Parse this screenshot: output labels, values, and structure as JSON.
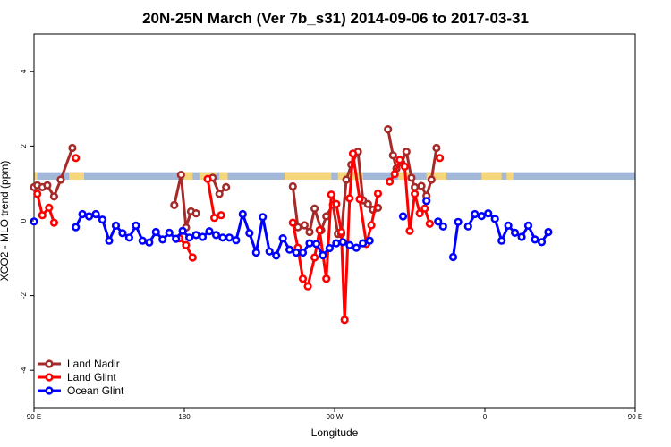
{
  "chart_data": {
    "type": "line",
    "title": "20N-25N March (Ver 7b_s31)   2014-09-06 to 2017-03-31",
    "xlabel": "Longitude",
    "ylabel": "XCO2 - MLO trend (ppm)",
    "xlim": [
      -180,
      180
    ],
    "ylim": [
      -5,
      5
    ],
    "x_ticks": [
      {
        "value": -180,
        "label": "90 E"
      },
      {
        "value": -90,
        "label": "180"
      },
      {
        "value": 0,
        "label": "90 W"
      },
      {
        "value": 90,
        "label": "0"
      },
      {
        "value": 180,
        "label": "90 E"
      },
      {
        "value": 270,
        "label": "180"
      }
    ],
    "y_ticks": [
      -4,
      -2,
      0,
      2,
      4
    ],
    "legend_position": "bottom-left",
    "land_ocean_band": {
      "y_range": [
        1.1,
        1.3
      ],
      "ocean_color": "#a3b8d8",
      "land_color": "#f5d67a",
      "land_segments": [
        [
          -180,
          -178
        ],
        [
          -159,
          -150
        ],
        [
          -90,
          -85
        ],
        [
          -81,
          -71
        ],
        [
          -69,
          -64
        ],
        [
          -30,
          -2
        ],
        [
          2,
          17
        ],
        [
          38,
          45
        ],
        [
          55,
          67
        ],
        [
          88,
          100
        ],
        [
          103,
          107
        ]
      ]
    },
    "series": [
      {
        "name": "Land Nadir",
        "color": "#a52a2a",
        "points": [
          [
            -180,
            0.9
          ],
          [
            -178,
            0.95
          ],
          [
            -175,
            0.9
          ],
          [
            -172,
            0.95
          ],
          [
            -168,
            0.65
          ],
          [
            -164,
            1.1
          ],
          [
            -157,
            1.95
          ],
          null,
          [
            -96,
            0.42
          ],
          [
            -92,
            1.23
          ],
          [
            -89,
            -0.18
          ],
          [
            -86,
            0.25
          ],
          [
            -83,
            0.2
          ],
          null,
          [
            -73,
            1.15
          ],
          [
            -69,
            0.72
          ],
          [
            -65,
            0.9
          ],
          null,
          [
            -25,
            0.92
          ],
          [
            -22,
            -0.17
          ],
          [
            -18,
            -0.12
          ],
          [
            -15,
            -0.3
          ],
          [
            -12,
            0.33
          ],
          [
            -8,
            -0.25
          ],
          [
            -5,
            0.12
          ],
          [
            -1,
            0.43
          ],
          [
            2,
            -0.35
          ],
          [
            4,
            -0.35
          ],
          [
            7,
            1.1
          ],
          [
            10,
            1.5
          ],
          [
            14,
            1.85
          ],
          [
            17,
            0.55
          ],
          [
            20,
            0.45
          ],
          [
            23,
            0.3
          ],
          [
            26,
            0.35
          ],
          null,
          [
            32,
            2.45
          ],
          [
            35,
            1.75
          ],
          [
            37,
            1.4
          ],
          [
            40,
            1.55
          ],
          [
            43,
            1.85
          ],
          [
            46,
            1.15
          ],
          [
            48,
            0.9
          ],
          [
            52,
            0.93
          ],
          [
            55,
            0.67
          ],
          [
            58,
            1.1
          ],
          [
            61,
            1.95
          ]
        ]
      },
      {
        "name": "Land Glint",
        "color": "#ff0000",
        "points": [
          [
            -178,
            0.72
          ],
          [
            -175,
            0.15
          ],
          [
            -171,
            0.35
          ],
          [
            -168,
            -0.05
          ],
          null,
          [
            -155,
            1.68
          ],
          null,
          [
            -93,
            -0.47
          ],
          [
            -89,
            -0.65
          ],
          [
            -85,
            -0.98
          ],
          null,
          [
            -76,
            1.12
          ],
          [
            -72,
            0.08
          ],
          [
            -68,
            0.15
          ],
          null,
          [
            -25,
            -0.05
          ],
          [
            -22,
            -0.72
          ],
          [
            -19,
            -1.55
          ],
          [
            -16,
            -1.75
          ],
          [
            -12,
            -0.98
          ],
          [
            -9,
            -0.25
          ],
          [
            -5,
            -1.55
          ],
          [
            -2,
            0.7
          ],
          [
            1,
            0.45
          ],
          [
            4,
            -0.3
          ],
          [
            6,
            -2.65
          ],
          [
            9,
            0.6
          ],
          [
            11,
            1.8
          ],
          [
            15,
            0.58
          ],
          [
            19,
            -0.62
          ],
          [
            22,
            -0.12
          ],
          [
            26,
            0.73
          ],
          null,
          [
            33,
            1.05
          ],
          [
            36,
            1.25
          ],
          [
            39,
            1.63
          ],
          [
            42,
            1.45
          ],
          [
            45,
            -0.27
          ],
          [
            48,
            0.72
          ],
          [
            51,
            0.2
          ],
          [
            54,
            0.33
          ],
          [
            57,
            -0.08
          ],
          null,
          [
            63,
            1.68
          ]
        ]
      },
      {
        "name": "Ocean Glint",
        "color": "#0000ff",
        "points": [
          [
            -180,
            -0.02
          ],
          null,
          [
            -155,
            -0.17
          ],
          [
            -151,
            0.18
          ],
          [
            -147,
            0.12
          ],
          [
            -143,
            0.18
          ],
          [
            -139,
            0.03
          ],
          [
            -135,
            -0.53
          ],
          [
            -131,
            -0.13
          ],
          [
            -127,
            -0.33
          ],
          [
            -123,
            -0.45
          ],
          [
            -119,
            -0.13
          ],
          [
            -115,
            -0.53
          ],
          [
            -111,
            -0.58
          ],
          [
            -107,
            -0.3
          ],
          [
            -103,
            -0.5
          ],
          [
            -99,
            -0.32
          ],
          [
            -95,
            -0.48
          ],
          [
            -91,
            -0.27
          ],
          [
            -87,
            -0.45
          ],
          [
            -83,
            -0.38
          ],
          [
            -79,
            -0.43
          ],
          [
            -75,
            -0.28
          ],
          [
            -71,
            -0.38
          ],
          [
            -67,
            -0.45
          ],
          [
            -63,
            -0.45
          ],
          [
            -59,
            -0.52
          ],
          [
            -55,
            0.18
          ],
          [
            -51,
            -0.33
          ],
          [
            -47,
            -0.85
          ],
          [
            -43,
            0.1
          ],
          [
            -39,
            -0.82
          ],
          [
            -35,
            -0.93
          ],
          [
            -31,
            -0.47
          ],
          [
            -27,
            -0.77
          ],
          [
            -23,
            -0.85
          ],
          [
            -19,
            -0.85
          ],
          [
            -15,
            -0.6
          ],
          [
            -11,
            -0.62
          ],
          [
            -7,
            -0.92
          ],
          [
            -3,
            -0.73
          ],
          [
            1,
            -0.6
          ],
          [
            5,
            -0.57
          ],
          [
            9,
            -0.65
          ],
          [
            13,
            -0.72
          ],
          [
            17,
            -0.6
          ],
          [
            21,
            -0.53
          ],
          null,
          [
            41,
            0.12
          ],
          null,
          [
            55,
            0.53
          ],
          null,
          [
            62,
            -0.02
          ],
          [
            65,
            -0.15
          ],
          null,
          [
            71,
            -0.97
          ],
          [
            74,
            -0.03
          ],
          null,
          [
            80,
            -0.15
          ],
          [
            84,
            0.18
          ],
          [
            88,
            0.13
          ],
          [
            92,
            0.2
          ],
          [
            96,
            0.05
          ],
          [
            100,
            -0.53
          ],
          [
            104,
            -0.13
          ],
          [
            108,
            -0.32
          ],
          [
            112,
            -0.43
          ],
          [
            116,
            -0.13
          ],
          [
            120,
            -0.5
          ],
          [
            124,
            -0.57
          ],
          [
            128,
            -0.3
          ]
        ]
      }
    ]
  }
}
